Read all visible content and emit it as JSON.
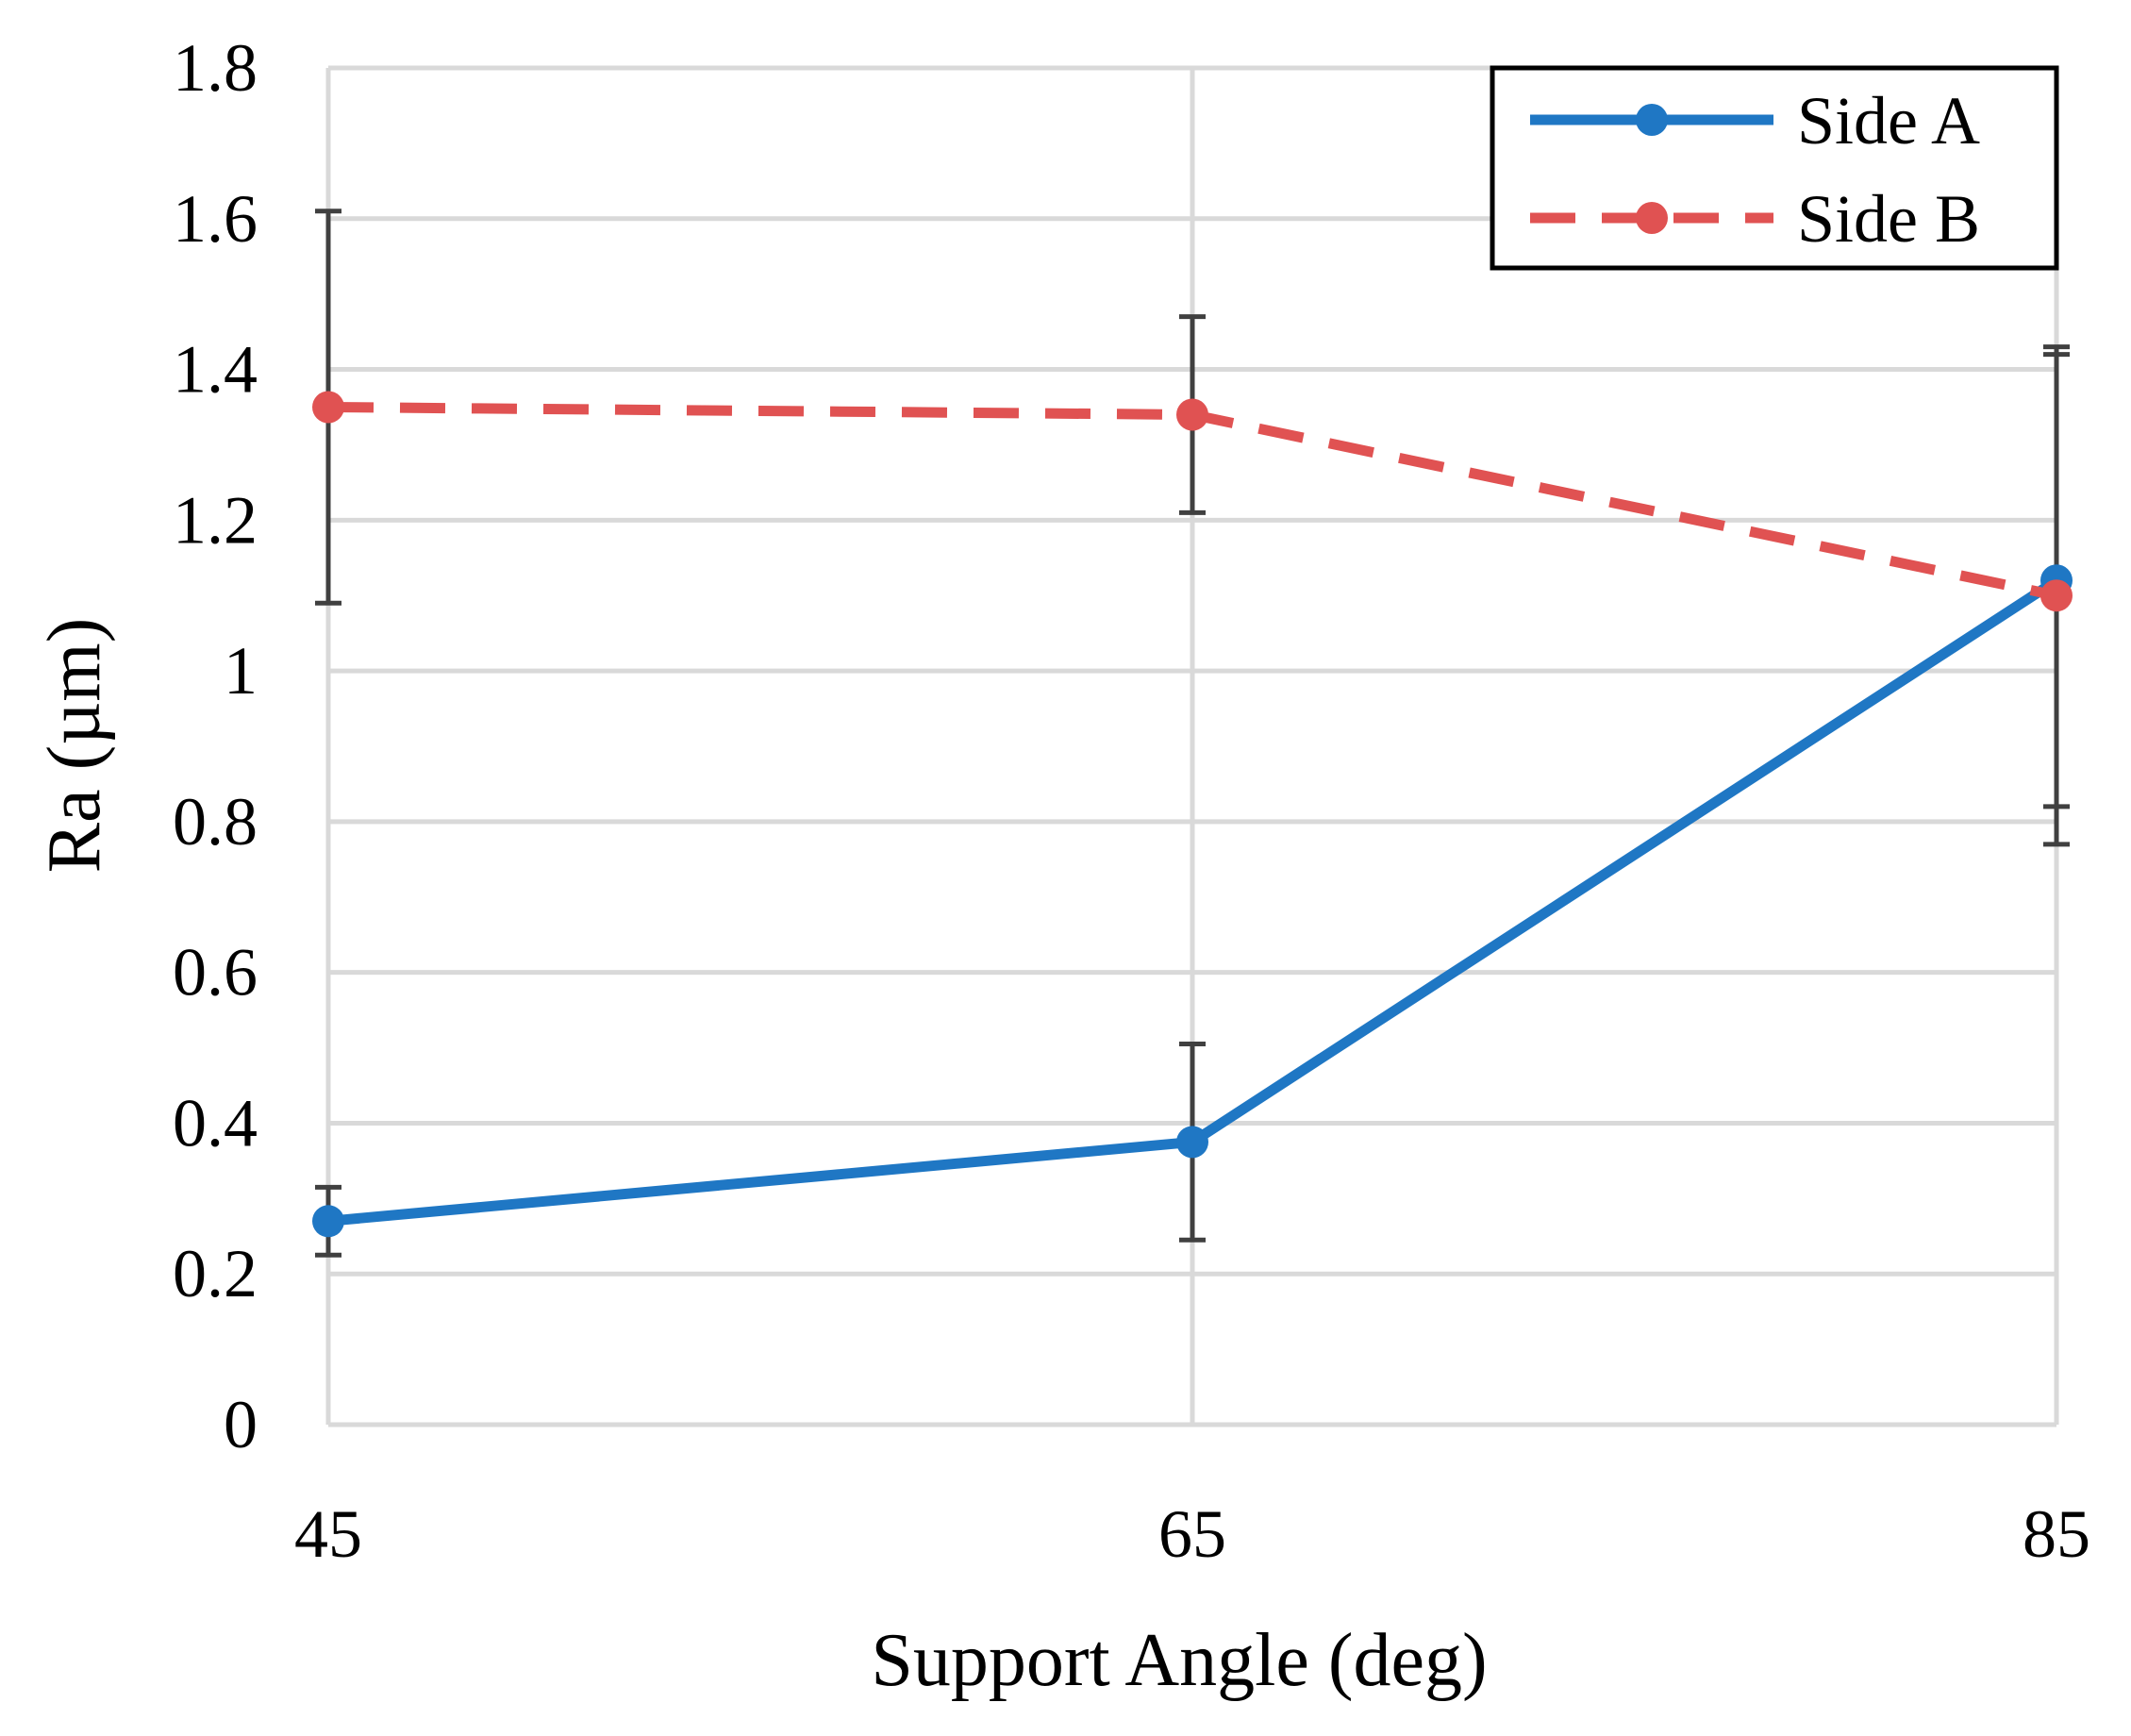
{
  "chart_data": {
    "type": "line",
    "title": "",
    "xlabel": "Support Angle (deg)",
    "ylabel": "Ra (µm)",
    "x": [
      45,
      65,
      85
    ],
    "x_tick_labels": [
      "45",
      "65",
      "85"
    ],
    "ylim": [
      0,
      1.8
    ],
    "y_ticks": [
      0,
      0.2,
      0.4,
      0.6,
      0.8,
      1,
      1.2,
      1.4,
      1.6,
      1.8
    ],
    "y_tick_labels": [
      "0",
      "0.2",
      "0.4",
      "0.6",
      "0.8",
      "1",
      "1.2",
      "1.4",
      "1.6",
      "1.8"
    ],
    "grid": true,
    "legend_position": "top-right",
    "series": [
      {
        "name": "Side A",
        "values": [
          0.27,
          0.375,
          1.12
        ],
        "error": [
          0.045,
          0.13,
          0.3
        ],
        "color": "#1f77c4",
        "line_style": "solid",
        "marker": "circle"
      },
      {
        "name": "Side B",
        "values": [
          1.35,
          1.34,
          1.1
        ],
        "error": [
          0.26,
          0.13,
          0.33
        ],
        "color": "#e05252",
        "line_style": "dashed",
        "marker": "circle"
      }
    ],
    "error_bar_color": "#404040",
    "grid_color": "#d9d9d9"
  }
}
